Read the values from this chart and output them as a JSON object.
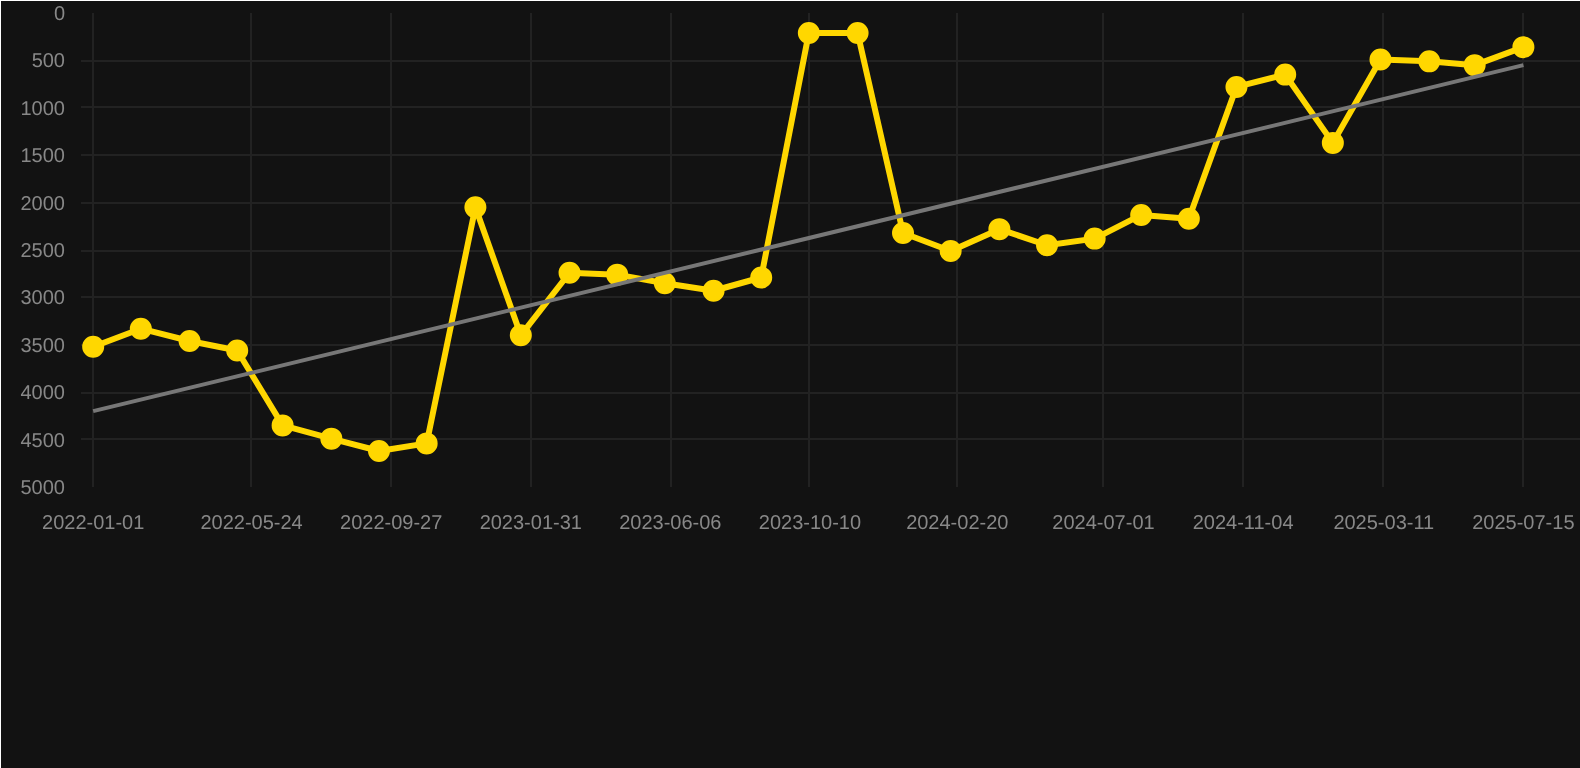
{
  "chart_data": {
    "type": "line",
    "marker": "circle",
    "line_style": "solid",
    "grid": true,
    "xlim": [
      "2021-12-21",
      "2025-09-05"
    ],
    "ylim": [
      5000,
      0
    ],
    "xticks": [
      "2022-01-01",
      "2022-05-24",
      "2022-09-27",
      "2023-01-31",
      "2023-06-06",
      "2023-10-10",
      "2024-02-20",
      "2024-07-01",
      "2024-11-04",
      "2025-03-11",
      "2025-07-15"
    ],
    "yticks": [
      0,
      500,
      1000,
      1500,
      2000,
      2500,
      3000,
      3500,
      4000,
      4500,
      5000
    ],
    "x": [
      "2022-01-01",
      "2022-02-13",
      "2022-03-29",
      "2022-05-11",
      "2022-06-21",
      "2022-08-04",
      "2022-09-16",
      "2022-10-29",
      "2022-12-12",
      "2023-01-22",
      "2023-03-07",
      "2023-04-19",
      "2023-06-01",
      "2023-07-15",
      "2023-08-27",
      "2023-10-09",
      "2023-11-22",
      "2024-01-02",
      "2024-02-14",
      "2024-03-29",
      "2024-05-11",
      "2024-06-23",
      "2024-08-04",
      "2024-09-16",
      "2024-10-29",
      "2024-12-12",
      "2025-01-24",
      "2025-03-08",
      "2025-04-21",
      "2025-06-01",
      "2025-07-15"
    ],
    "series": [
      {
        "color": "#ffd700",
        "values": [
          3520,
          3330,
          3460,
          3560,
          4350,
          4490,
          4620,
          4540,
          2050,
          3400,
          2740,
          2760,
          2850,
          2930,
          2790,
          210,
          210,
          2320,
          2510,
          2280,
          2450,
          2380,
          2130,
          2170,
          780,
          650,
          1370,
          490,
          510,
          550,
          360
        ]
      },
      {
        "type": "line",
        "marker": "none",
        "color": "#777777",
        "x": [
          "2022-01-01",
          "2025-07-15"
        ],
        "values": [
          4200,
          550
        ]
      }
    ]
  }
}
